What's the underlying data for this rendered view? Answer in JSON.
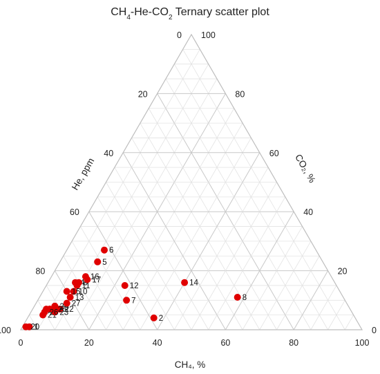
{
  "chart_data": {
    "type": "scatter",
    "subtype": "ternary",
    "title": {
      "pre": "CH",
      "sub1": "4",
      "mid1": "-He-CO",
      "sub2": "2",
      "post": " Ternary scatter plot"
    },
    "axes": {
      "bottom": {
        "label": "CH₄, %",
        "ticks": [
          "0",
          "20",
          "40",
          "60",
          "80",
          "100"
        ],
        "range": [
          0,
          100
        ]
      },
      "left": {
        "label": "He, ppm",
        "ticks": [
          "0",
          "20",
          "40",
          "60",
          "80",
          "100"
        ],
        "range": [
          0,
          100
        ]
      },
      "right": {
        "label": "CO₂, %",
        "ticks": [
          "0",
          "20",
          "40",
          "60",
          "80",
          "100"
        ],
        "range": [
          0,
          100
        ]
      }
    },
    "grid": true,
    "grid_step": 5,
    "marker_color": "#e00000",
    "points": [
      {
        "label": "1",
        "ch4": 2,
        "he": 97,
        "co2": 1
      },
      {
        "label": "2",
        "ch4": 37,
        "he": 59,
        "co2": 4
      },
      {
        "label": "3",
        "ch4": 5,
        "he": 88,
        "co2": 7
      },
      {
        "label": "4",
        "ch4": 8,
        "he": 76,
        "co2": 16
      },
      {
        "label": "5",
        "ch4": 11,
        "he": 66,
        "co2": 23
      },
      {
        "label": "6",
        "ch4": 11,
        "he": 62,
        "co2": 27
      },
      {
        "label": "7",
        "ch4": 26,
        "he": 64,
        "co2": 10
      },
      {
        "label": "8",
        "ch4": 58,
        "he": 31,
        "co2": 11
      },
      {
        "label": "9",
        "ch4": 9,
        "he": 75,
        "co2": 16
      },
      {
        "label": "10",
        "ch4": 9,
        "he": 78,
        "co2": 13
      },
      {
        "label": "11",
        "ch4": 9,
        "he": 76,
        "co2": 15
      },
      {
        "label": "12",
        "ch4": 23,
        "he": 62,
        "co2": 15
      },
      {
        "label": "13",
        "ch4": 9,
        "he": 80,
        "co2": 11
      },
      {
        "label": "14",
        "ch4": 40,
        "he": 44,
        "co2": 16
      },
      {
        "label": "15",
        "ch4": 7,
        "he": 80,
        "co2": 13
      },
      {
        "label": "16",
        "ch4": 10,
        "he": 72,
        "co2": 18
      },
      {
        "label": "17",
        "ch4": 11,
        "he": 72,
        "co2": 17
      },
      {
        "label": "18",
        "ch4": 5,
        "he": 88,
        "co2": 7
      },
      {
        "label": "19",
        "ch4": 4,
        "he": 89,
        "co2": 7
      },
      {
        "label": "20",
        "ch4": 1,
        "he": 98,
        "co2": 1
      },
      {
        "label": "21",
        "ch4": 4,
        "he": 91,
        "co2": 5
      },
      {
        "label": "22",
        "ch4": 8,
        "he": 85,
        "co2": 7
      },
      {
        "label": "23",
        "ch4": 7,
        "he": 87,
        "co2": 6
      },
      {
        "label": "24",
        "ch4": 6,
        "he": 86,
        "co2": 8
      },
      {
        "label": "25",
        "ch4": 6,
        "he": 87,
        "co2": 7
      },
      {
        "label": "26",
        "ch4": 4,
        "he": 90,
        "co2": 6
      },
      {
        "label": "27",
        "ch4": 9,
        "he": 82,
        "co2": 9
      }
    ]
  }
}
